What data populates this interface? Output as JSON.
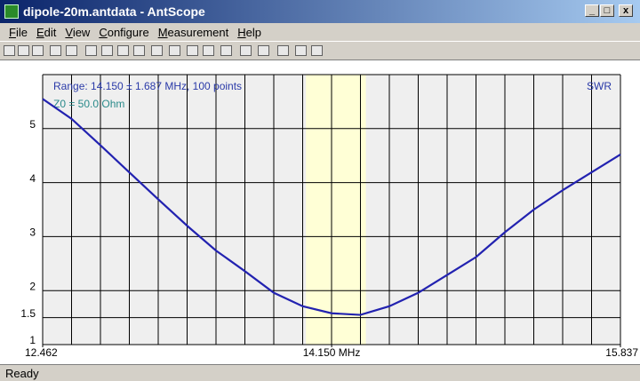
{
  "window": {
    "title": "dipole-20m.antdata - AntScope",
    "menu": [
      "File",
      "Edit",
      "View",
      "Configure",
      "Measurement",
      "Help"
    ],
    "status": "Ready"
  },
  "chart_data": {
    "type": "line",
    "annotations": [
      "Range: 14.150 ± 1.687 MHz, 100 points",
      "Z0 = 50.0 Ohm"
    ],
    "y_label": "SWR",
    "x": [
      12.462,
      12.631,
      12.8,
      12.968,
      13.137,
      13.306,
      13.475,
      13.643,
      13.812,
      13.981,
      14.15,
      14.318,
      14.487,
      14.656,
      14.825,
      14.993,
      15.162,
      15.331,
      15.5,
      15.668,
      15.837
    ],
    "series": [
      {
        "name": "SWR",
        "color": "#2222b0",
        "values": [
          5.55,
          5.18,
          4.69,
          4.19,
          3.69,
          3.2,
          2.74,
          2.36,
          1.96,
          1.71,
          1.58,
          1.55,
          1.71,
          1.96,
          2.29,
          2.62,
          3.08,
          3.5,
          3.86,
          4.19,
          4.52
        ]
      }
    ],
    "highlight_range": [
      14.0,
      14.35
    ],
    "xlim": [
      12.462,
      15.837
    ],
    "xticks": [
      {
        "value": 12.462,
        "label": "12.462"
      },
      {
        "value": 14.15,
        "label": "14.150 MHz"
      },
      {
        "value": 15.837,
        "label": "15.837"
      }
    ],
    "ylim": [
      1,
      6
    ],
    "yticks": [
      1,
      1.5,
      2,
      3,
      4,
      5
    ],
    "grid": true
  }
}
